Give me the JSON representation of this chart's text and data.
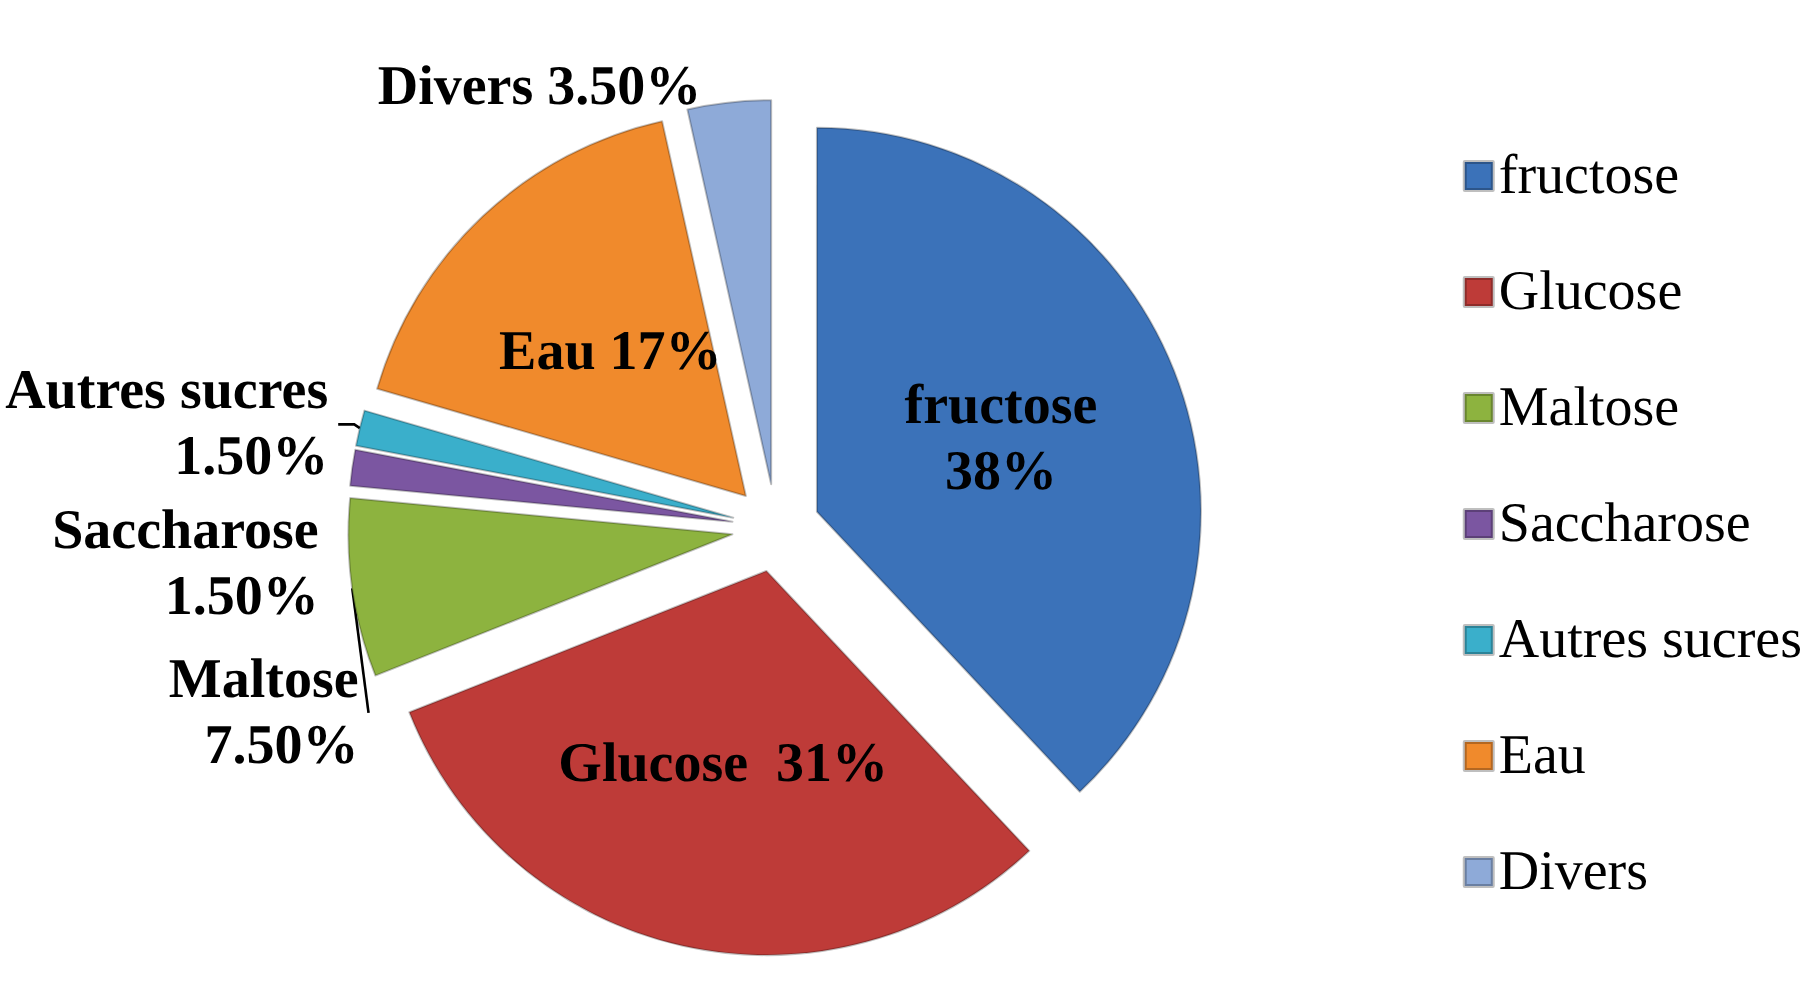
{
  "chart_data": {
    "type": "pie",
    "categories": [
      "fructose",
      "Glucose",
      "Maltose",
      "Saccharose",
      "Autres sucres",
      "Eau",
      "Divers"
    ],
    "values": [
      38,
      31,
      7.5,
      1.5,
      1.5,
      17,
      3.5
    ],
    "colors": [
      "#3b72b9",
      "#be3b38",
      "#8db33f",
      "#7b56a1",
      "#3aafcb",
      "#f08a2c",
      "#8eaad8"
    ],
    "value_labels": [
      "fructose 38%",
      "Glucose  31%",
      "Maltose 7.50%",
      "Saccharose 1.50%",
      "Autres sucres 1.50%",
      "Eau 17%",
      "Divers 3.50%"
    ],
    "legend": "right"
  }
}
